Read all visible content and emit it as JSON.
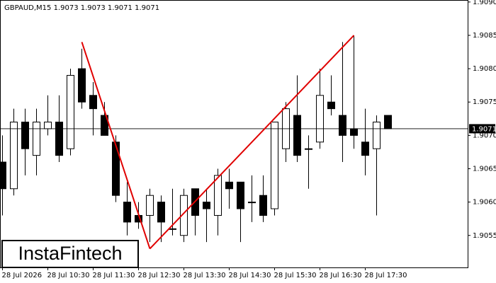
{
  "chart_data": {
    "type": "candlestick",
    "header": "GBPAUD,M15  1.9073 1.9073 1.9071 1.9071",
    "logo": "InstaFintech",
    "categories": [
      "28 Jul 2026",
      null,
      null,
      null,
      "28 Jul 10:30",
      null,
      null,
      null,
      "28 Jul 11:30",
      null,
      null,
      null,
      "28 Jul 12:30",
      null,
      null,
      null,
      "28 Jul 13:30",
      null,
      null,
      null,
      "28 Jul 14:30",
      null,
      null,
      null,
      "28 Jul 15:30",
      null,
      null,
      null,
      "28 Jul 16:30",
      null,
      null,
      null,
      "28 Jul 17:30",
      null,
      null
    ],
    "open": [
      1.9066,
      1.9062,
      1.9072,
      1.9067,
      1.9071,
      1.9072,
      1.9068,
      1.908,
      1.9076,
      1.9073,
      1.9069,
      1.906,
      1.9058,
      1.9058,
      1.906,
      1.9056,
      1.9055,
      1.9062,
      1.906,
      1.9058,
      1.9063,
      1.9063,
      1.906,
      1.9061,
      1.9059,
      1.9068,
      1.9073,
      1.9068,
      1.9069,
      1.9075,
      1.9073,
      1.9071,
      1.9069,
      1.9068,
      1.9073
    ],
    "high": [
      1.907,
      1.9074,
      1.9074,
      1.9074,
      1.9076,
      1.9076,
      1.908,
      1.9083,
      1.9078,
      1.9075,
      1.907,
      1.9063,
      1.906,
      1.9062,
      1.9061,
      1.9062,
      1.9062,
      1.9062,
      1.9062,
      1.9065,
      1.9065,
      1.9063,
      1.9064,
      1.9064,
      1.9072,
      1.9075,
      1.9079,
      1.907,
      1.908,
      1.9079,
      1.9084,
      1.9085,
      1.9074,
      1.9073,
      1.9073
    ],
    "low": [
      1.9058,
      1.9061,
      1.9064,
      1.9064,
      1.907,
      1.9066,
      1.9067,
      1.9074,
      1.907,
      1.907,
      1.906,
      1.9055,
      1.9056,
      1.9054,
      1.9054,
      1.9055,
      1.9054,
      1.9055,
      1.9054,
      1.9055,
      1.9059,
      1.9054,
      1.9057,
      1.9057,
      1.9058,
      1.9066,
      1.9066,
      1.9062,
      1.9068,
      1.9073,
      1.9066,
      1.9068,
      1.9064,
      1.9058,
      1.9071
    ],
    "close": [
      1.9062,
      1.9072,
      1.9068,
      1.9072,
      1.9072,
      1.9067,
      1.9079,
      1.9075,
      1.9074,
      1.907,
      1.9061,
      1.9057,
      1.9057,
      1.9061,
      1.9057,
      1.9056,
      1.9061,
      1.9058,
      1.9059,
      1.9064,
      1.9062,
      1.9059,
      1.906,
      1.9058,
      1.9072,
      1.9074,
      1.9067,
      1.9068,
      1.9076,
      1.9074,
      1.907,
      1.907,
      1.9067,
      1.9072,
      1.9071
    ],
    "up_color": "#ffffff",
    "down_color": "#000000",
    "ylim": [
      1.90502,
      1.90903
    ],
    "yticks": [
      {
        "value": 1.9055,
        "label": "1.9055"
      },
      {
        "value": 1.906,
        "label": "1.9060"
      },
      {
        "value": 1.9065,
        "label": "1.9065"
      },
      {
        "value": 1.907,
        "label": "1.9070"
      },
      {
        "value": 1.9075,
        "label": "1.9075"
      },
      {
        "value": 1.908,
        "label": "1.9080"
      },
      {
        "value": 1.9085,
        "label": "1.9085"
      },
      {
        "value": 1.909,
        "label": "1.9090"
      }
    ],
    "current_price": 1.9071,
    "pattern_line": {
      "color": "#e00000",
      "points": [
        [
          7,
          1.9084
        ],
        [
          13,
          1.9053
        ],
        [
          31,
          1.9085
        ]
      ]
    }
  }
}
